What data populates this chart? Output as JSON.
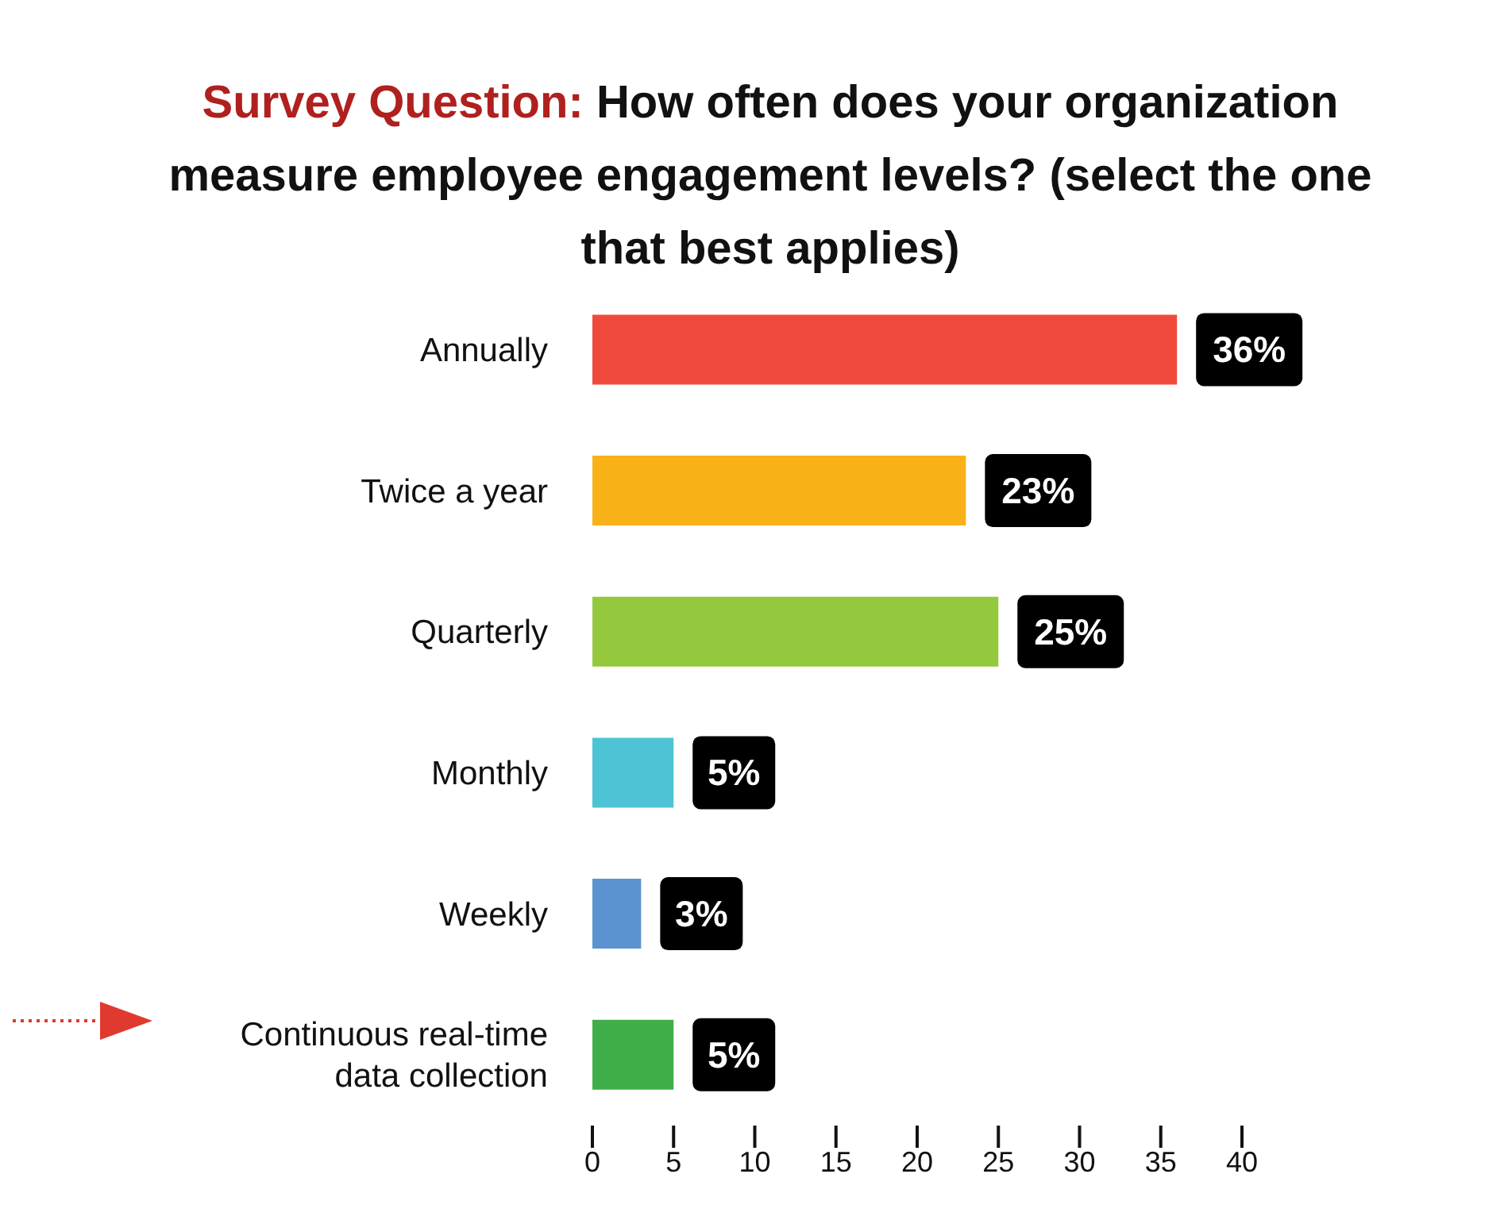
{
  "chart_data": {
    "type": "bar",
    "orientation": "horizontal",
    "title": "Survey Question:",
    "subtitle": "How often does your organization measure employee engagement levels? (select the one that best applies)",
    "categories": [
      "Annually",
      "Twice a year",
      "Quarterly",
      "Monthly",
      "Weekly",
      "Continuous real-time data collection"
    ],
    "values": [
      36,
      23,
      25,
      5,
      3,
      5
    ],
    "colors": [
      "#ef4a3c",
      "#f8b217",
      "#95c93d",
      "#4dc4d5",
      "#5b93d0",
      "#3fae49"
    ],
    "value_labels": [
      "36%",
      "23%",
      "25%",
      "5%",
      "3%",
      "5%"
    ],
    "xlim": [
      0,
      40
    ],
    "xticks": [
      0,
      5,
      10,
      15,
      20,
      25,
      30,
      35,
      40
    ],
    "grid": false,
    "legend": false
  }
}
